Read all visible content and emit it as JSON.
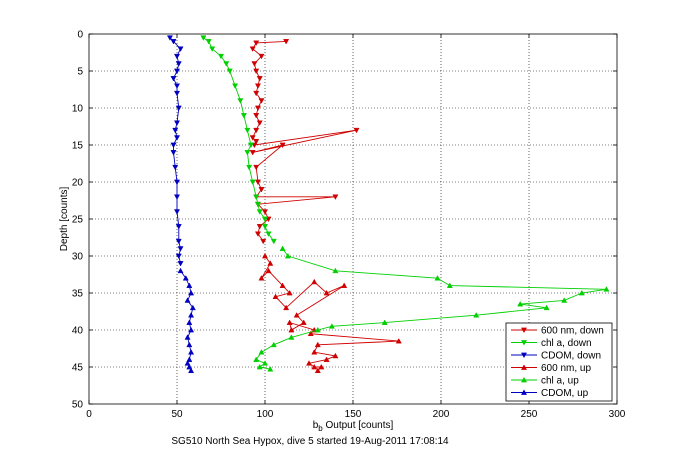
{
  "chart_data": {
    "type": "line",
    "title": "",
    "footnote": "SG510 North Sea Hypox, dive 5 started 19-Aug-2011 17:08:14",
    "xlabel_main": "b",
    "xlabel_sub": "b",
    "xlabel_rest": " Output [counts]",
    "ylabel": "Depth [counts]",
    "xlim": [
      0,
      300
    ],
    "ylim": [
      0,
      50
    ],
    "y_reversed": true,
    "grid": true,
    "legend_position": "bottom-right",
    "xticks": [
      "0",
      "50",
      "100",
      "150",
      "200",
      "250",
      "300"
    ],
    "yticks": [
      "0",
      "5",
      "10",
      "15",
      "20",
      "25",
      "30",
      "35",
      "40",
      "45",
      "50"
    ],
    "series": [
      {
        "name": "600 nm, down",
        "color": "#d00000",
        "marker": "down",
        "x": [
          112,
          95,
          93,
          98,
          94,
          95,
          97,
          96,
          95,
          98,
          96,
          95,
          97,
          95,
          93,
          95,
          94,
          152,
          93,
          110,
          95,
          96,
          98,
          95,
          140,
          96,
          100,
          102,
          97,
          96,
          99
        ],
        "y": [
          1,
          1.2,
          2,
          3,
          4,
          5,
          6,
          7,
          8,
          9,
          10,
          11,
          12,
          13,
          14,
          14.5,
          15,
          13,
          16,
          15,
          18,
          20,
          21,
          22,
          22,
          23,
          24,
          25,
          26,
          27,
          28
        ]
      },
      {
        "name": "chl a, down",
        "color": "#00d000",
        "marker": "down",
        "x": [
          65,
          68,
          70,
          75,
          78,
          80,
          83,
          86,
          88,
          90,
          92,
          90,
          91,
          93,
          95,
          96,
          97,
          100,
          100,
          102,
          105
        ],
        "y": [
          0.5,
          1,
          2,
          3,
          4,
          5,
          7,
          9,
          11,
          13,
          15,
          16,
          18,
          20,
          22,
          23,
          24,
          25,
          26,
          27,
          28
        ]
      },
      {
        "name": "CDOM, down",
        "color": "#0000c0",
        "marker": "down",
        "x": [
          46,
          48,
          52,
          50,
          51,
          50,
          48,
          50,
          50,
          51,
          50,
          49,
          50,
          48,
          48,
          49,
          50,
          50,
          50,
          51,
          51,
          52,
          51,
          52
        ],
        "y": [
          0.5,
          1,
          2,
          3,
          4,
          5,
          6,
          7,
          8,
          10,
          12,
          13,
          14,
          15,
          16,
          18,
          20,
          22,
          24,
          26,
          28,
          29,
          30,
          31
        ]
      },
      {
        "name": "600 nm, up",
        "color": "#d00000",
        "marker": "up",
        "x": [
          100,
          103,
          98,
          102,
          110,
          114,
          106,
          112,
          128,
          135,
          145,
          118,
          122,
          115,
          114,
          128,
          126,
          176,
          130,
          128,
          140,
          135,
          125,
          128,
          132,
          130
        ],
        "y": [
          30,
          31,
          33,
          32,
          34,
          35,
          35.5,
          37,
          33.5,
          35,
          34,
          38,
          39,
          40,
          39,
          40,
          40.5,
          41.5,
          42,
          43,
          43.5,
          44,
          44.5,
          45,
          45,
          45.5
        ]
      },
      {
        "name": "chl a, up",
        "color": "#00d000",
        "marker": "up",
        "x": [
          110,
          113,
          140,
          198,
          205,
          294,
          280,
          270,
          245,
          260,
          220,
          168,
          138,
          130,
          115,
          105,
          98,
          95,
          100,
          97,
          103
        ],
        "y": [
          29,
          30,
          32,
          33,
          34,
          34.5,
          35,
          36,
          36.5,
          37,
          38,
          39,
          39.5,
          40,
          41,
          42,
          43,
          44,
          44.5,
          45,
          45.3
        ]
      },
      {
        "name": "CDOM, up",
        "color": "#0000c0",
        "marker": "up",
        "x": [
          52,
          55,
          57,
          58,
          56,
          59,
          58,
          57,
          58,
          56,
          57,
          58,
          57,
          56,
          57,
          58
        ],
        "y": [
          32,
          33,
          34,
          35,
          36,
          37,
          38,
          39,
          40,
          41,
          42,
          43,
          44,
          44.5,
          45,
          45.5
        ]
      }
    ]
  }
}
